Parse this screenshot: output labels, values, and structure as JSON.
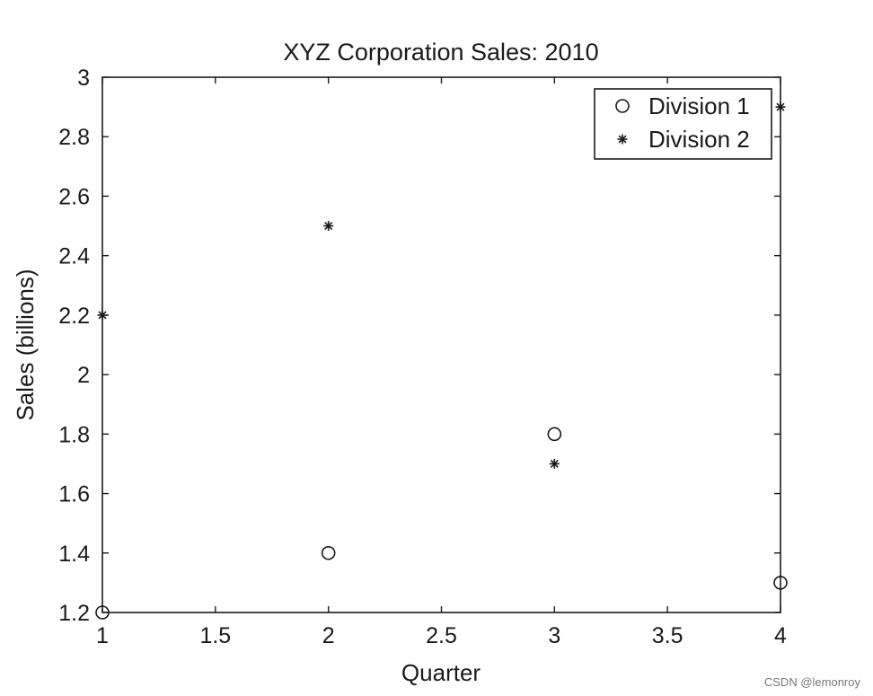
{
  "chart_data": {
    "type": "scatter",
    "title": "XYZ Corporation Sales: 2010",
    "xlabel": "Quarter",
    "ylabel": "Sales (billions)",
    "xlim": [
      1,
      4
    ],
    "ylim": [
      1.2,
      3
    ],
    "xticks": [
      1,
      1.5,
      2,
      2.5,
      3,
      3.5,
      4
    ],
    "yticks": [
      1.2,
      1.4,
      1.6,
      1.8,
      2,
      2.2,
      2.4,
      2.6,
      2.8,
      3
    ],
    "x_tick_labels": [
      "1",
      "1.5",
      "2",
      "2.5",
      "3",
      "3.5",
      "4"
    ],
    "y_tick_labels": [
      "1.2",
      "1.4",
      "1.6",
      "1.8",
      "2",
      "2.2",
      "2.4",
      "2.6",
      "2.8",
      "3"
    ],
    "grid": false,
    "legend_position": "top-right",
    "series": [
      {
        "name": "Division 1",
        "marker": "circle",
        "x": [
          1,
          2,
          3,
          4
        ],
        "y": [
          1.2,
          1.4,
          1.8,
          1.3
        ]
      },
      {
        "name": "Division 2",
        "marker": "asterisk",
        "x": [
          1,
          2,
          3,
          4
        ],
        "y": [
          2.2,
          2.5,
          1.7,
          2.9
        ]
      }
    ]
  },
  "watermark": "CSDN @lemonroy",
  "colors": {
    "ink": "#1a1a1a",
    "background": "#ffffff"
  }
}
